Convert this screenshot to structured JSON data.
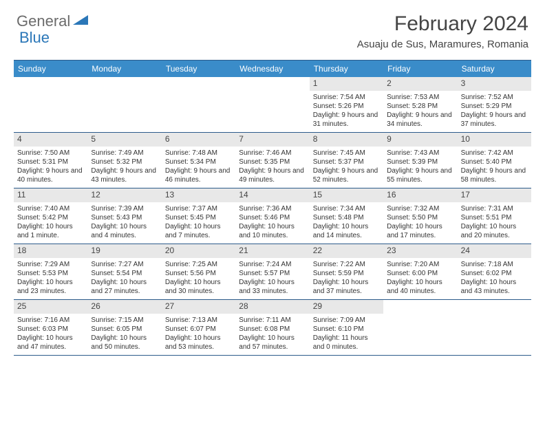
{
  "logo": {
    "part1": "General",
    "part2": "Blue"
  },
  "title": "February 2024",
  "location": "Asuaju de Sus, Maramures, Romania",
  "colors": {
    "header_bg": "#3a8cc9",
    "border": "#2b5a8a",
    "daynum_bg": "#e8e8e8",
    "logo_gray": "#6b6b6b",
    "logo_blue": "#2b77b8"
  },
  "dow": [
    "Sunday",
    "Monday",
    "Tuesday",
    "Wednesday",
    "Thursday",
    "Friday",
    "Saturday"
  ],
  "weeks": [
    [
      null,
      null,
      null,
      null,
      {
        "n": "1",
        "sr": "7:54 AM",
        "ss": "5:26 PM",
        "dl": "9 hours and 31 minutes."
      },
      {
        "n": "2",
        "sr": "7:53 AM",
        "ss": "5:28 PM",
        "dl": "9 hours and 34 minutes."
      },
      {
        "n": "3",
        "sr": "7:52 AM",
        "ss": "5:29 PM",
        "dl": "9 hours and 37 minutes."
      }
    ],
    [
      {
        "n": "4",
        "sr": "7:50 AM",
        "ss": "5:31 PM",
        "dl": "9 hours and 40 minutes."
      },
      {
        "n": "5",
        "sr": "7:49 AM",
        "ss": "5:32 PM",
        "dl": "9 hours and 43 minutes."
      },
      {
        "n": "6",
        "sr": "7:48 AM",
        "ss": "5:34 PM",
        "dl": "9 hours and 46 minutes."
      },
      {
        "n": "7",
        "sr": "7:46 AM",
        "ss": "5:35 PM",
        "dl": "9 hours and 49 minutes."
      },
      {
        "n": "8",
        "sr": "7:45 AM",
        "ss": "5:37 PM",
        "dl": "9 hours and 52 minutes."
      },
      {
        "n": "9",
        "sr": "7:43 AM",
        "ss": "5:39 PM",
        "dl": "9 hours and 55 minutes."
      },
      {
        "n": "10",
        "sr": "7:42 AM",
        "ss": "5:40 PM",
        "dl": "9 hours and 58 minutes."
      }
    ],
    [
      {
        "n": "11",
        "sr": "7:40 AM",
        "ss": "5:42 PM",
        "dl": "10 hours and 1 minute."
      },
      {
        "n": "12",
        "sr": "7:39 AM",
        "ss": "5:43 PM",
        "dl": "10 hours and 4 minutes."
      },
      {
        "n": "13",
        "sr": "7:37 AM",
        "ss": "5:45 PM",
        "dl": "10 hours and 7 minutes."
      },
      {
        "n": "14",
        "sr": "7:36 AM",
        "ss": "5:46 PM",
        "dl": "10 hours and 10 minutes."
      },
      {
        "n": "15",
        "sr": "7:34 AM",
        "ss": "5:48 PM",
        "dl": "10 hours and 14 minutes."
      },
      {
        "n": "16",
        "sr": "7:32 AM",
        "ss": "5:50 PM",
        "dl": "10 hours and 17 minutes."
      },
      {
        "n": "17",
        "sr": "7:31 AM",
        "ss": "5:51 PM",
        "dl": "10 hours and 20 minutes."
      }
    ],
    [
      {
        "n": "18",
        "sr": "7:29 AM",
        "ss": "5:53 PM",
        "dl": "10 hours and 23 minutes."
      },
      {
        "n": "19",
        "sr": "7:27 AM",
        "ss": "5:54 PM",
        "dl": "10 hours and 27 minutes."
      },
      {
        "n": "20",
        "sr": "7:25 AM",
        "ss": "5:56 PM",
        "dl": "10 hours and 30 minutes."
      },
      {
        "n": "21",
        "sr": "7:24 AM",
        "ss": "5:57 PM",
        "dl": "10 hours and 33 minutes."
      },
      {
        "n": "22",
        "sr": "7:22 AM",
        "ss": "5:59 PM",
        "dl": "10 hours and 37 minutes."
      },
      {
        "n": "23",
        "sr": "7:20 AM",
        "ss": "6:00 PM",
        "dl": "10 hours and 40 minutes."
      },
      {
        "n": "24",
        "sr": "7:18 AM",
        "ss": "6:02 PM",
        "dl": "10 hours and 43 minutes."
      }
    ],
    [
      {
        "n": "25",
        "sr": "7:16 AM",
        "ss": "6:03 PM",
        "dl": "10 hours and 47 minutes."
      },
      {
        "n": "26",
        "sr": "7:15 AM",
        "ss": "6:05 PM",
        "dl": "10 hours and 50 minutes."
      },
      {
        "n": "27",
        "sr": "7:13 AM",
        "ss": "6:07 PM",
        "dl": "10 hours and 53 minutes."
      },
      {
        "n": "28",
        "sr": "7:11 AM",
        "ss": "6:08 PM",
        "dl": "10 hours and 57 minutes."
      },
      {
        "n": "29",
        "sr": "7:09 AM",
        "ss": "6:10 PM",
        "dl": "11 hours and 0 minutes."
      },
      null,
      null
    ]
  ],
  "labels": {
    "sunrise": "Sunrise:",
    "sunset": "Sunset:",
    "daylight": "Daylight:"
  }
}
